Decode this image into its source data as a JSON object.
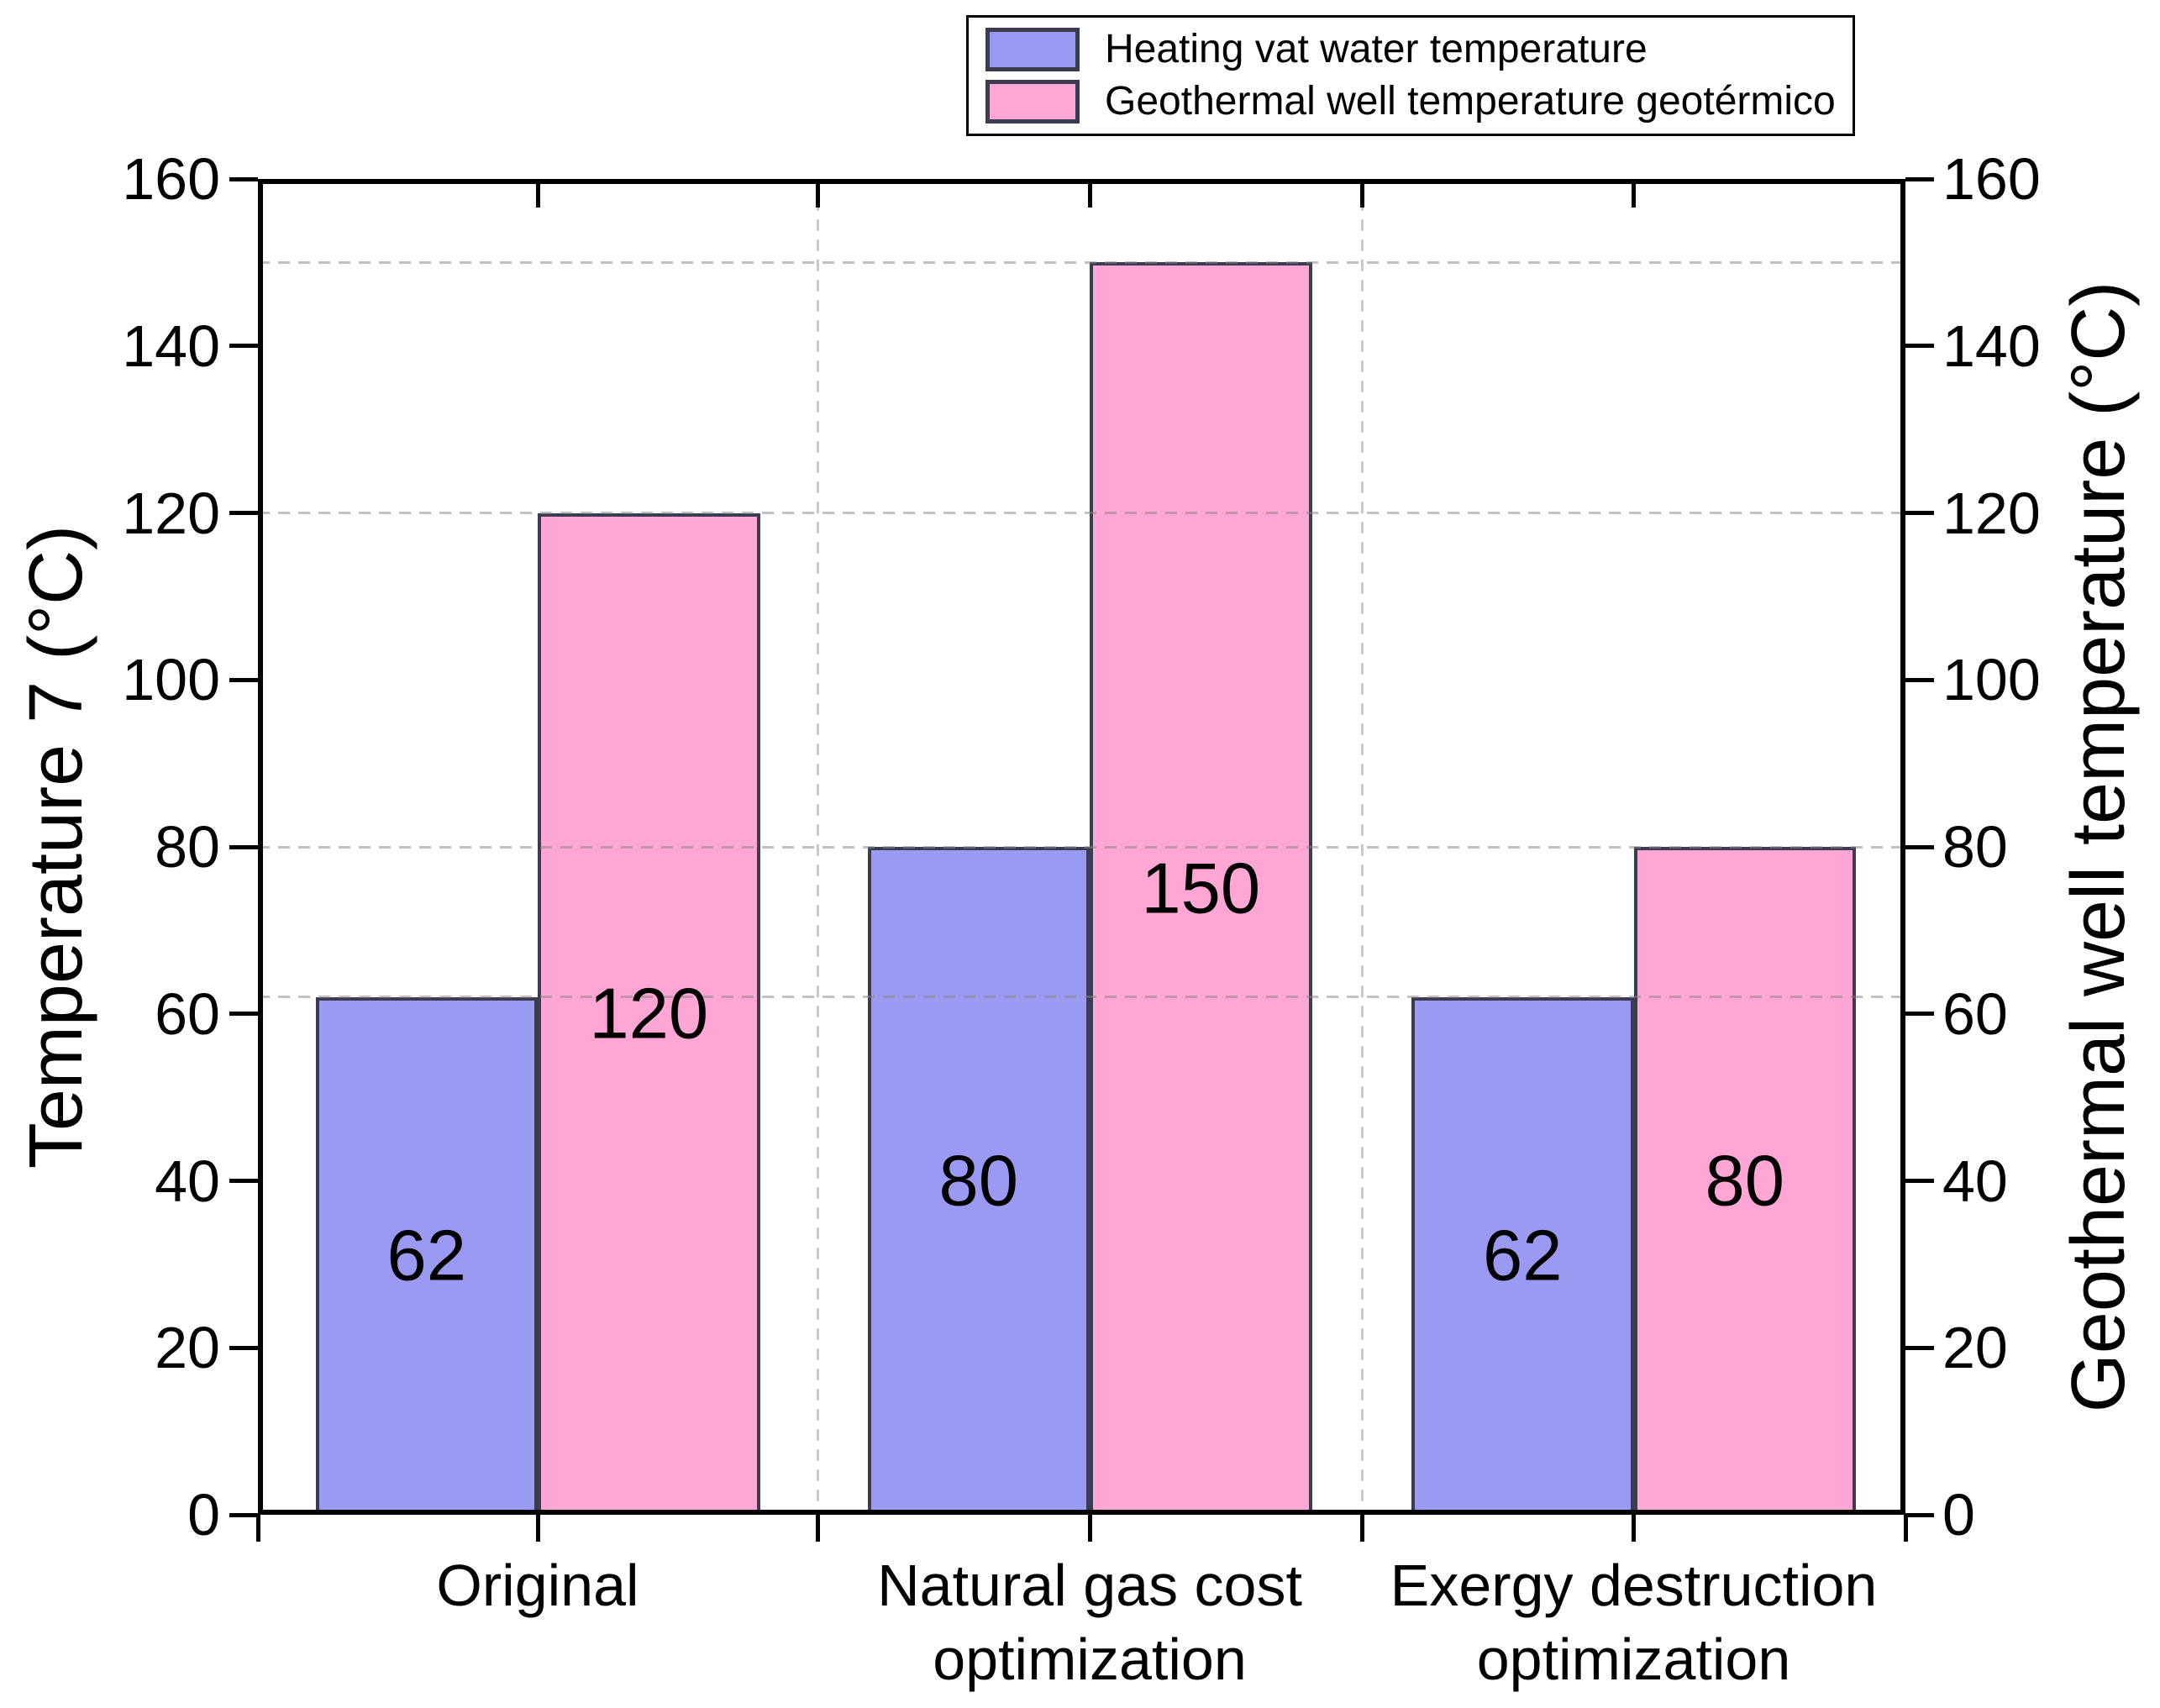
{
  "chart_data": {
    "type": "bar",
    "categories": [
      "Original",
      "Natural gas cost\noptimization",
      "Exergy destruction\noptimization"
    ],
    "series": [
      {
        "name": "Heating vat water temperature",
        "values": [
          62,
          80,
          62
        ],
        "color": "#9a9af2"
      },
      {
        "name": "Geothermal well temperature geotérmico",
        "values": [
          120,
          150,
          80
        ],
        "color": "#ffa6d5"
      }
    ],
    "bar_value_labels": [
      [
        "62",
        "80",
        "62"
      ],
      [
        "120",
        "150",
        "80"
      ]
    ],
    "ylabel_left": "Temperature 7 (°C)",
    "ylabel_right": "Geothermal well temperature (°C)",
    "ylim": [
      0,
      160
    ],
    "yticks": [
      0,
      20,
      40,
      60,
      80,
      100,
      120,
      140,
      160
    ],
    "reference_lines": [
      62,
      80,
      120,
      150
    ],
    "grid": "dashed horizontal lines at bar values and dashed vertical lines at category boundaries",
    "legend_position": "top-right",
    "colors": {
      "heating_fill": "#9a9af2",
      "geothermal_fill": "#ffa6d5",
      "bar_edge": "#3c3c50",
      "axis": "#000000",
      "gridline": "#9c9c9c"
    }
  }
}
